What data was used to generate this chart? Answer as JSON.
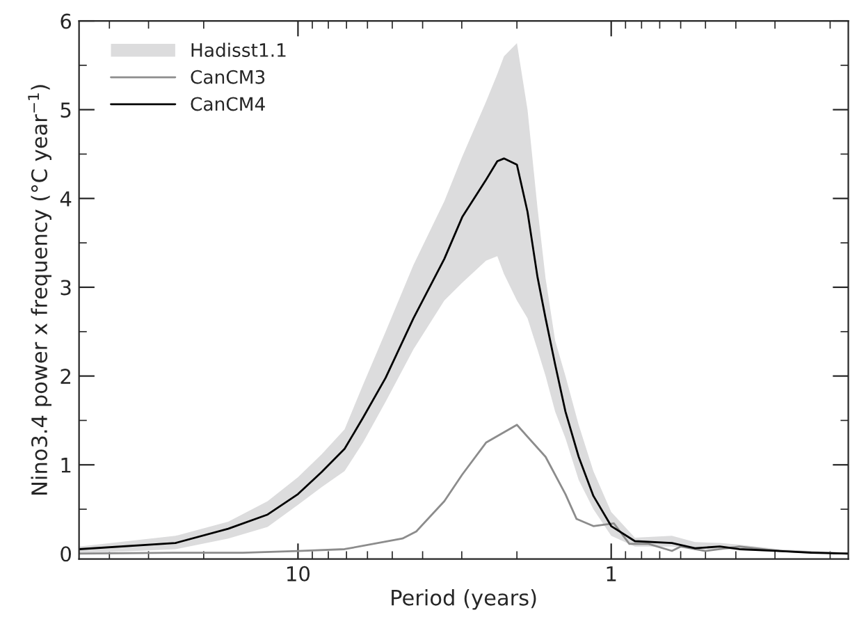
{
  "chart_data": {
    "type": "line",
    "xlabel": "Period (years)",
    "ylabel": "Nino3.4 power x frequency (°C year$^{−1}$)",
    "log": "x",
    "xlim": [
      50,
      0.175
    ],
    "xticks": [
      {
        "value": 40,
        "label": null
      },
      {
        "value": 30,
        "label": null
      },
      {
        "value": 20,
        "label": null
      },
      10,
      {
        "value": 9,
        "label": null
      },
      {
        "value": 8,
        "label": null
      },
      {
        "value": 7,
        "label": null
      },
      {
        "value": 6,
        "label": null
      },
      {
        "value": 5,
        "label": null
      },
      {
        "value": 4,
        "label": null
      },
      {
        "value": 3,
        "label": null
      },
      {
        "value": 2,
        "label": null
      },
      1,
      {
        "value": 0.9,
        "label": null
      },
      {
        "value": 0.8,
        "label": null
      },
      {
        "value": 0.7,
        "label": null
      },
      {
        "value": 0.6,
        "label": null
      },
      {
        "value": 0.5,
        "label": null
      },
      {
        "value": 0.4,
        "label": null
      },
      {
        "value": 0.3,
        "label": null
      },
      {
        "value": 0.2,
        "label": null
      }
    ],
    "ylim": [
      -0.06,
      6
    ],
    "yticks": [
      0,
      {
        "value": 0.5,
        "label": null
      },
      1,
      {
        "value": 1.5,
        "label": null
      },
      2,
      {
        "value": 2.5,
        "label": null
      },
      3,
      {
        "value": 3.5,
        "label": null
      },
      4,
      {
        "value": 4.5,
        "label": null
      },
      5,
      {
        "value": 5.5,
        "label": null
      },
      6
    ],
    "grid": false,
    "legend": "top left",
    "series": [
      {
        "name": "Hadisst1.1",
        "color": "#dcdcdd",
        "values": [
          null,
          null,
          null,
          null,
          null,
          null,
          null,
          null,
          null,
          null,
          null,
          null,
          null,
          null,
          null,
          null,
          null,
          null,
          null,
          null,
          null,
          null,
          null,
          null,
          null,
          null,
          null,
          null,
          null,
          null,
          null,
          null
        ],
        "x": [
          50,
          24.6,
          16.7,
          12.5,
          10,
          8.4,
          7.1,
          6.2,
          5.25,
          4.28,
          3.41,
          2.99,
          2.51,
          2.31,
          2.2,
          2.0,
          1.85,
          1.72,
          1.62,
          1.51,
          1.4,
          1.27,
          1.14,
          1.0,
          0.84,
          0.64,
          0.54,
          0.45,
          0.39,
          0.29,
          0.23,
          0.175
        ],
        "lower": [
          0.0,
          0.05,
          0.17,
          0.3,
          0.55,
          0.75,
          0.93,
          1.25,
          1.71,
          2.3,
          2.85,
          3.05,
          3.3,
          3.35,
          3.15,
          2.85,
          2.65,
          2.3,
          2.0,
          1.6,
          1.3,
          0.83,
          0.5,
          0.2,
          0.08,
          0.08,
          0.05,
          0.05,
          0.04,
          0.02,
          0.0,
          0.0
        ],
        "upper": [
          0.08,
          0.2,
          0.36,
          0.59,
          0.86,
          1.12,
          1.4,
          1.9,
          2.5,
          3.25,
          3.97,
          4.47,
          5.09,
          5.4,
          5.6,
          5.75,
          5.0,
          3.9,
          3.1,
          2.4,
          2.0,
          1.45,
          0.93,
          0.47,
          0.18,
          0.2,
          0.13,
          0.12,
          0.1,
          0.05,
          0.03,
          0.01
        ]
      },
      {
        "name": "CanCM3",
        "color": "#8c8c8c",
        "x": [
          50,
          25,
          15,
          10,
          7.1,
          4.64,
          4.19,
          3.41,
          2.99,
          2.51,
          2.0,
          1.62,
          1.4,
          1.29,
          1.14,
          0.98,
          0.875,
          0.76,
          0.64,
          0.6,
          0.5,
          0.39,
          0.29,
          0.175
        ],
        "values": [
          0.0,
          0.01,
          0.01,
          0.03,
          0.05,
          0.17,
          0.25,
          0.59,
          0.89,
          1.25,
          1.45,
          1.09,
          0.67,
          0.39,
          0.31,
          0.34,
          0.11,
          0.11,
          0.03,
          0.08,
          0.03,
          0.08,
          0.03,
          0.0
        ]
      },
      {
        "name": "CanCM4",
        "color": "#000000",
        "x": [
          50,
          24.6,
          16.7,
          12.5,
          10,
          8.4,
          7.1,
          6.2,
          5.25,
          4.28,
          3.41,
          2.99,
          2.51,
          2.31,
          2.2,
          2.0,
          1.85,
          1.72,
          1.62,
          1.51,
          1.4,
          1.27,
          1.14,
          1.0,
          0.84,
          0.64,
          0.54,
          0.45,
          0.39,
          0.29,
          0.23,
          0.175
        ],
        "values": [
          0.05,
          0.12,
          0.28,
          0.44,
          0.67,
          0.92,
          1.18,
          1.53,
          1.98,
          2.65,
          3.32,
          3.79,
          4.21,
          4.42,
          4.45,
          4.38,
          3.85,
          3.12,
          2.65,
          2.13,
          1.6,
          1.09,
          0.65,
          0.31,
          0.14,
          0.12,
          0.06,
          0.08,
          0.05,
          0.03,
          0.01,
          0.0
        ]
      }
    ]
  }
}
